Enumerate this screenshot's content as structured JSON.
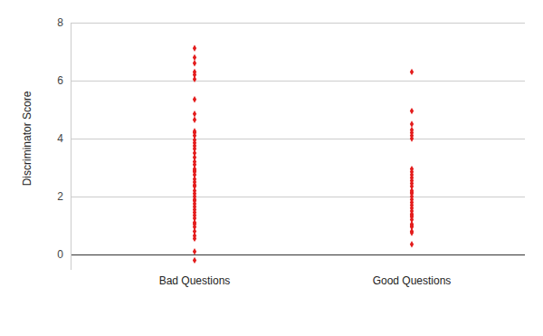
{
  "chart_data": {
    "type": "strip",
    "y_label": "Discriminator Score",
    "categories": [
      "Bad Questions",
      "Good Questions"
    ],
    "values": [
      [
        7.12,
        6.8,
        6.6,
        6.3,
        6.2,
        6.05,
        5.35,
        4.85,
        4.65,
        4.25,
        4.2,
        4.1,
        3.95,
        3.85,
        3.75,
        3.65,
        3.5,
        3.35,
        3.2,
        3.1,
        2.95,
        2.9,
        2.85,
        2.75,
        2.6,
        2.5,
        2.4,
        2.35,
        2.2,
        2.1,
        2.0,
        1.9,
        1.85,
        1.75,
        1.65,
        1.55,
        1.45,
        1.35,
        1.25,
        1.1,
        1.05,
        0.95,
        0.8,
        0.65,
        0.55,
        0.1,
        -0.2
      ],
      [
        6.3,
        4.95,
        4.5,
        4.3,
        4.2,
        4.1,
        4.0,
        2.95,
        2.85,
        2.75,
        2.65,
        2.55,
        2.45,
        2.35,
        2.2,
        2.15,
        2.1,
        2.0,
        1.9,
        1.8,
        1.7,
        1.6,
        1.5,
        1.4,
        1.35,
        1.3,
        1.2,
        1.05,
        1.0,
        0.95,
        0.8,
        0.75,
        0.35
      ]
    ],
    "color": "#e31c1c",
    "marker": "diamond",
    "ylim": [
      -0.5,
      8
    ],
    "yticks": [
      0,
      2,
      4,
      6,
      8
    ],
    "grid": true
  }
}
